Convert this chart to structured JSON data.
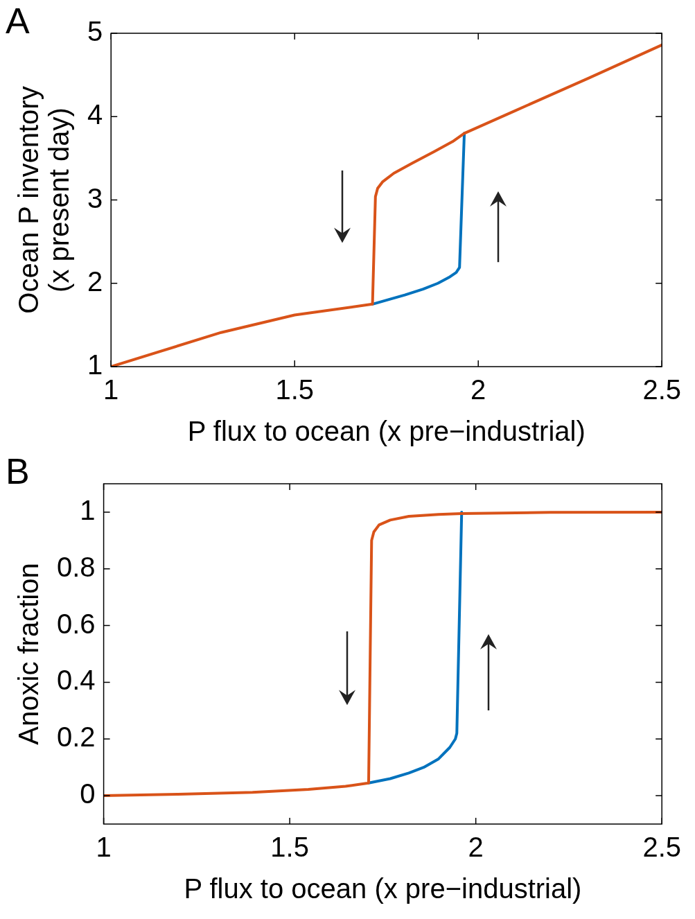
{
  "chart_data": [
    {
      "type": "line",
      "title": "A",
      "xlabel": "P flux to ocean (x pre−industrial)",
      "ylabel": "Ocean P inventory\n(x present day)",
      "xlim": [
        1,
        2.5
      ],
      "xticks": [
        1,
        1.5,
        2,
        2.5
      ],
      "ylim": [
        1,
        5
      ],
      "yticks": [
        1,
        2,
        3,
        4,
        5
      ],
      "grid": false,
      "legend": false,
      "marker": "none",
      "series": [
        {
          "color": "#0072bd",
          "x": [
            1.712,
            1.76,
            1.8,
            1.85,
            1.89,
            1.92,
            1.94,
            1.949,
            1.962
          ],
          "values": [
            1.75,
            1.81,
            1.86,
            1.93,
            2.0,
            2.07,
            2.13,
            2.19,
            3.8
          ]
        },
        {
          "color": "#d95319",
          "x": [
            1,
            1.3,
            1.5,
            1.712,
            1.72,
            1.726,
            1.74,
            1.77,
            1.82,
            1.88,
            1.93,
            1.962,
            2.1,
            2.3,
            2.5
          ],
          "values": [
            1,
            1.41,
            1.62,
            1.75,
            3.04,
            3.14,
            3.22,
            3.32,
            3.44,
            3.58,
            3.7,
            3.8,
            4.07,
            4.46,
            4.86
          ]
        }
      ]
    },
    {
      "type": "line",
      "title": "B",
      "xlabel": "P flux to ocean (x pre−industrial)",
      "ylabel": "Anoxic fraction",
      "xlim": [
        1,
        2.5
      ],
      "xticks": [
        1,
        1.5,
        2,
        2.5
      ],
      "ylim": [
        -0.1,
        1.1
      ],
      "yticks": [
        0,
        0.2,
        0.4,
        0.6,
        0.8,
        1
      ],
      "grid": false,
      "legend": false,
      "marker": "none",
      "series": [
        {
          "color": "#0072bd",
          "x": [
            1.712,
            1.77,
            1.82,
            1.86,
            1.9,
            1.93,
            1.945,
            1.949,
            1.962
          ],
          "values": [
            0.045,
            0.06,
            0.08,
            0.1,
            0.13,
            0.17,
            0.2,
            0.22,
            1.0
          ]
        },
        {
          "color": "#d95319",
          "x": [
            1,
            1.2,
            1.4,
            1.55,
            1.65,
            1.712,
            1.72,
            1.726,
            1.74,
            1.77,
            1.82,
            1.9,
            1.962,
            2.2,
            2.5
          ],
          "values": [
            0,
            0.005,
            0.012,
            0.022,
            0.033,
            0.045,
            0.9,
            0.93,
            0.955,
            0.972,
            0.985,
            0.992,
            0.995,
            0.999,
            1.0
          ]
        }
      ]
    }
  ]
}
